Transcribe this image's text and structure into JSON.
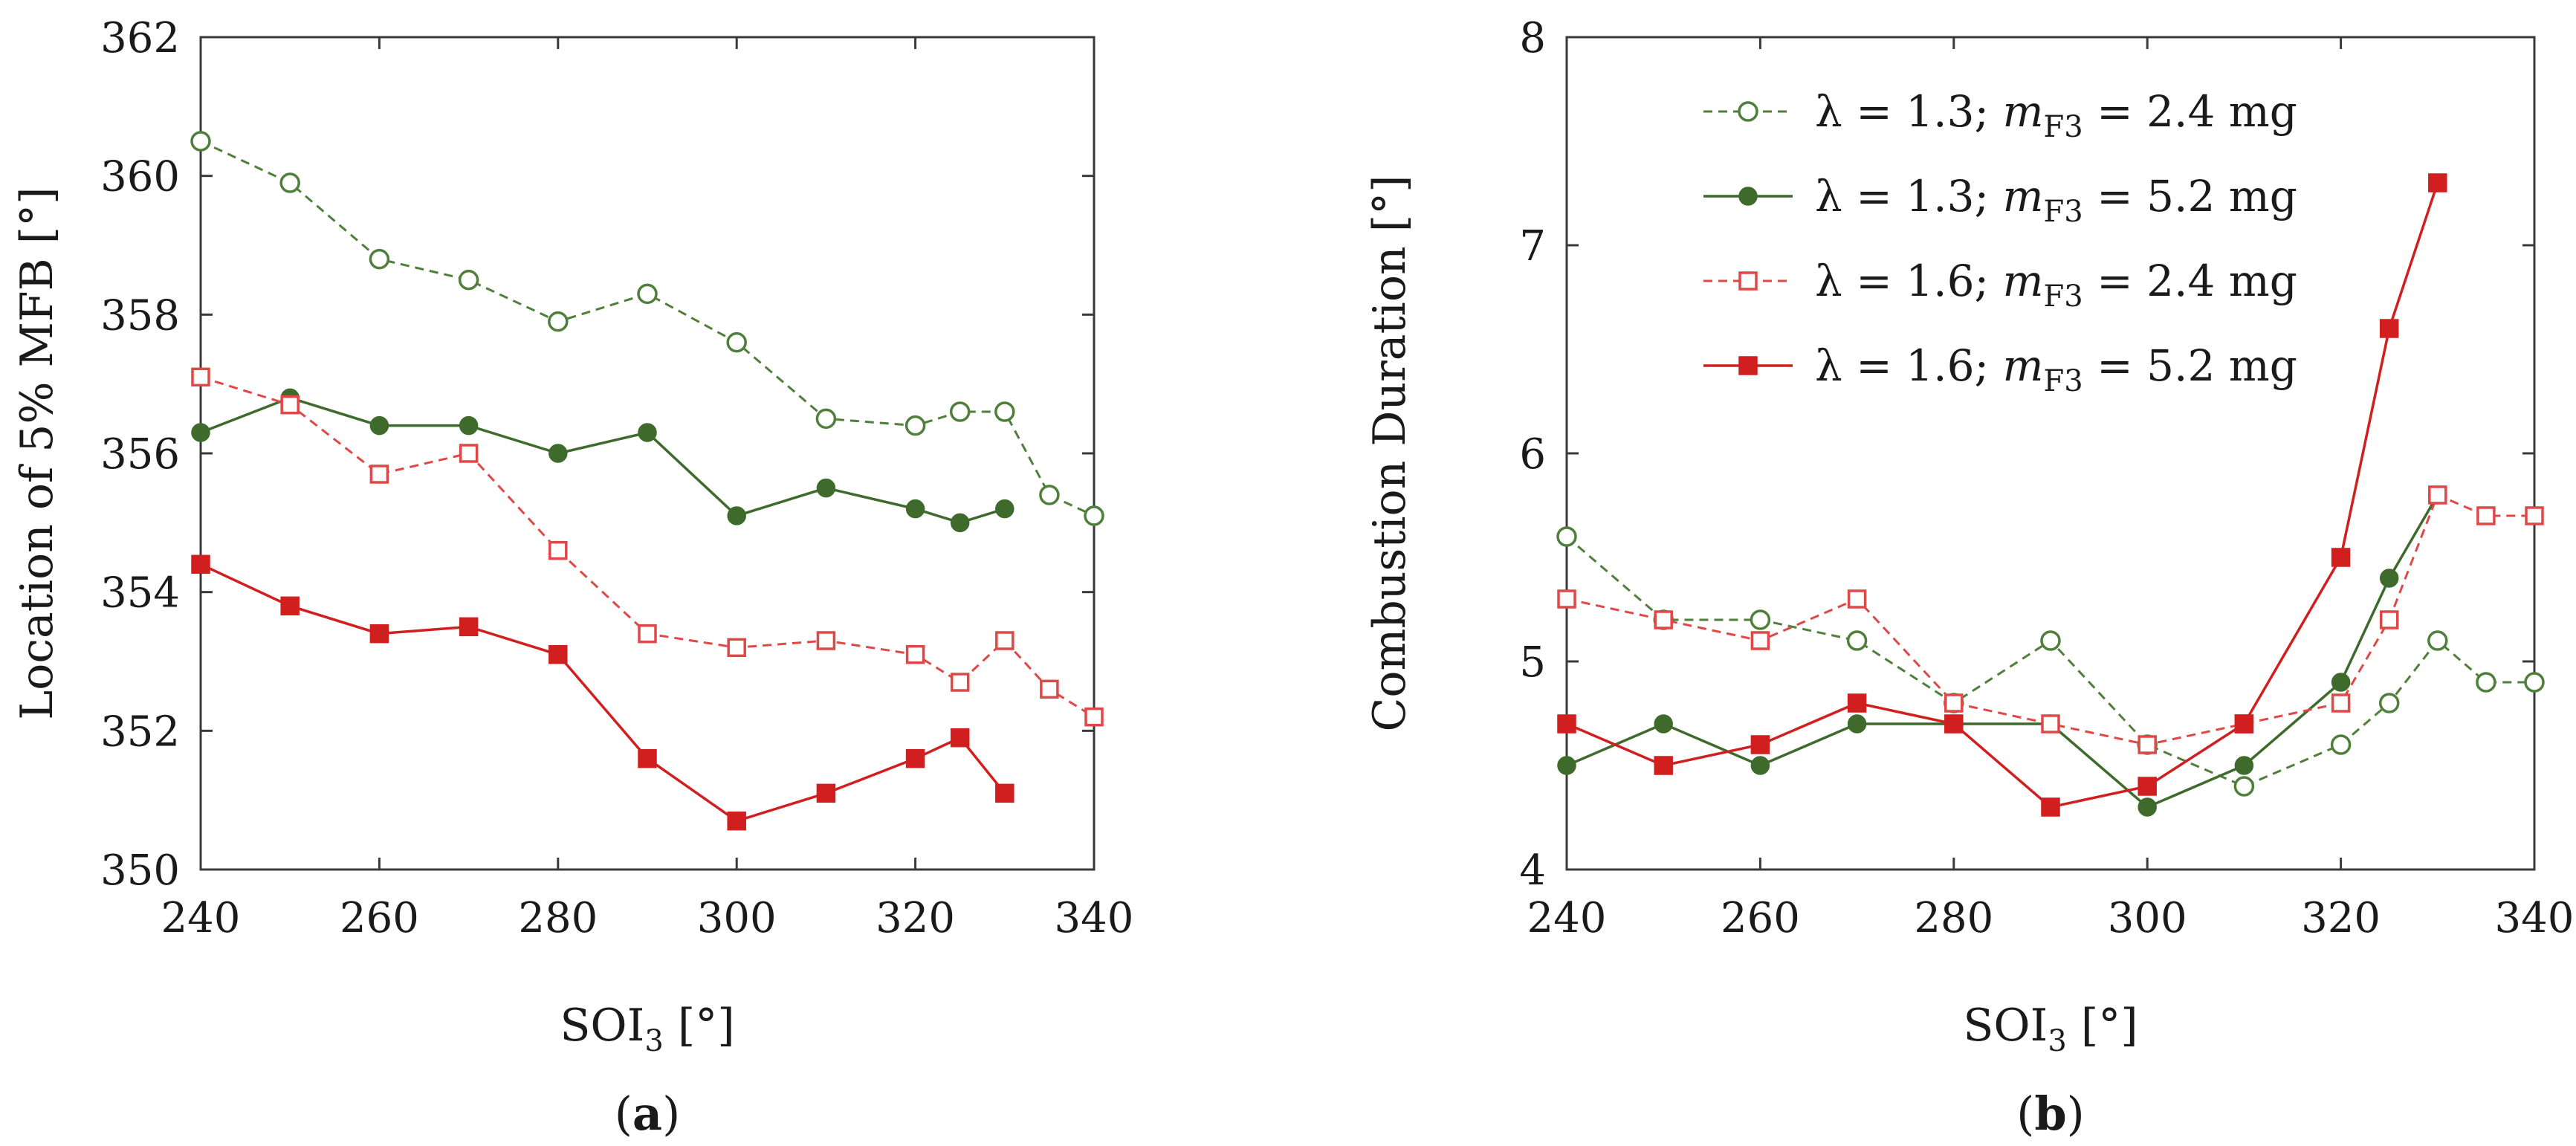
{
  "colors": {
    "green": "#3e6b2c",
    "green_light": "#4f7f3a",
    "red": "#d11f1f",
    "red_light": "#e04848",
    "frame": "#3a3a3a",
    "text": "#1a1a1a"
  },
  "legend": {
    "items": [
      {
        "lambda_text": "λ = 1.3;",
        "var_main": "m",
        "var_sub": "F3",
        "mass_text": "= 2.4 mg",
        "series": 0
      },
      {
        "lambda_text": "λ = 1.3;",
        "var_main": "m",
        "var_sub": "F3",
        "mass_text": "= 5.2 mg",
        "series": 1
      },
      {
        "lambda_text": "λ = 1.6;",
        "var_main": "m",
        "var_sub": "F3",
        "mass_text": "= 2.4 mg",
        "series": 2
      },
      {
        "lambda_text": "λ = 1.6;",
        "var_main": "m",
        "var_sub": "F3",
        "mass_text": "= 5.2 mg",
        "series": 3
      }
    ],
    "placement": "top-left of panel b"
  },
  "chart_data": [
    {
      "type": "line",
      "panel_label": {
        "open": "(",
        "letter": "a",
        "close": ")"
      },
      "xlabel": {
        "main": "SOI",
        "sub": "3",
        "unit": " [°]"
      },
      "ylabel": "Location of 5% MFB [°]",
      "xlim": [
        240,
        340
      ],
      "ylim": [
        350,
        362
      ],
      "xticks": [
        240,
        260,
        280,
        300,
        320,
        340
      ],
      "yticks": [
        350,
        352,
        354,
        356,
        358,
        360,
        362
      ],
      "grid": false,
      "series": [
        {
          "marker": "open-circle",
          "dash": true,
          "color": "#4f7f3a",
          "x": [
            240,
            250,
            260,
            270,
            280,
            290,
            300,
            310,
            320,
            325,
            330,
            335,
            340
          ],
          "y": [
            360.5,
            359.9,
            358.8,
            358.5,
            357.9,
            358.3,
            357.6,
            356.5,
            356.4,
            356.6,
            356.6,
            355.4,
            355.1
          ]
        },
        {
          "marker": "filled-circle",
          "dash": false,
          "color": "#3e6b2c",
          "x": [
            240,
            250,
            260,
            270,
            280,
            290,
            300,
            310,
            320,
            325,
            330
          ],
          "y": [
            356.3,
            356.8,
            356.4,
            356.4,
            356.0,
            356.3,
            355.1,
            355.5,
            355.2,
            355.0,
            355.2
          ]
        },
        {
          "marker": "open-square",
          "dash": true,
          "color": "#e04848",
          "x": [
            240,
            250,
            260,
            270,
            280,
            290,
            300,
            310,
            320,
            325,
            330,
            335,
            340
          ],
          "y": [
            357.1,
            356.7,
            355.7,
            356.0,
            354.6,
            353.4,
            353.2,
            353.3,
            353.1,
            352.7,
            353.3,
            352.6,
            352.2
          ]
        },
        {
          "marker": "filled-square",
          "dash": false,
          "color": "#d11f1f",
          "x": [
            240,
            250,
            260,
            270,
            280,
            290,
            300,
            310,
            320,
            325,
            330
          ],
          "y": [
            354.4,
            353.8,
            353.4,
            353.5,
            353.1,
            351.6,
            350.7,
            351.1,
            351.6,
            351.9,
            351.1
          ]
        }
      ]
    },
    {
      "type": "line",
      "panel_label": {
        "open": "(",
        "letter": "b",
        "close": ")"
      },
      "xlabel": {
        "main": "SOI",
        "sub": "3",
        "unit": " [°]"
      },
      "ylabel": "Combustion Duration [°]",
      "xlim": [
        240,
        340
      ],
      "ylim": [
        4,
        8
      ],
      "xticks": [
        240,
        260,
        280,
        300,
        320,
        340
      ],
      "yticks": [
        4,
        5,
        6,
        7,
        8
      ],
      "grid": false,
      "series": [
        {
          "marker": "open-circle",
          "dash": true,
          "color": "#4f7f3a",
          "x": [
            240,
            250,
            260,
            270,
            280,
            290,
            300,
            310,
            320,
            325,
            330,
            335,
            340
          ],
          "y": [
            5.6,
            5.2,
            5.2,
            5.1,
            4.8,
            5.1,
            4.6,
            4.4,
            4.6,
            4.8,
            5.1,
            4.9,
            4.9
          ]
        },
        {
          "marker": "filled-circle",
          "dash": false,
          "color": "#3e6b2c",
          "x": [
            240,
            250,
            260,
            270,
            280,
            290,
            300,
            310,
            320,
            325,
            330
          ],
          "y": [
            4.5,
            4.7,
            4.5,
            4.7,
            4.7,
            4.7,
            4.3,
            4.5,
            4.9,
            5.4,
            5.8
          ]
        },
        {
          "marker": "open-square",
          "dash": true,
          "color": "#e04848",
          "x": [
            240,
            250,
            260,
            270,
            280,
            290,
            300,
            310,
            320,
            325,
            330,
            335,
            340
          ],
          "y": [
            5.3,
            5.2,
            5.1,
            5.3,
            4.8,
            4.7,
            4.6,
            4.7,
            4.8,
            5.2,
            5.8,
            5.7,
            5.7
          ]
        },
        {
          "marker": "filled-square",
          "dash": false,
          "color": "#d11f1f",
          "x": [
            240,
            250,
            260,
            270,
            280,
            290,
            300,
            310,
            320,
            325,
            330
          ],
          "y": [
            4.7,
            4.5,
            4.6,
            4.8,
            4.7,
            4.3,
            4.4,
            4.7,
            5.5,
            6.6,
            7.3
          ]
        }
      ]
    }
  ]
}
